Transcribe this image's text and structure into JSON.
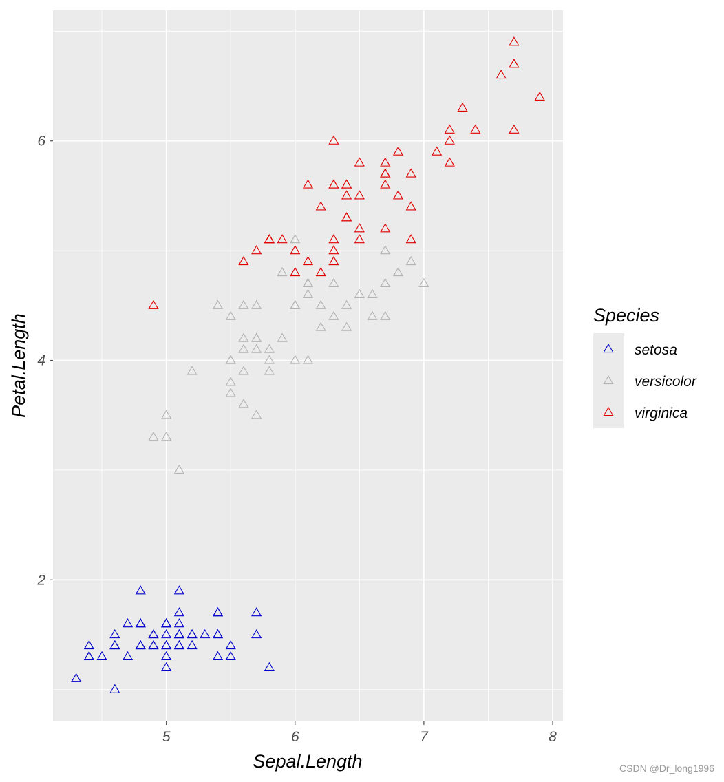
{
  "chart_data": {
    "type": "scatter",
    "title": "",
    "xlabel": "Sepal.Length",
    "ylabel": "Petal.Length",
    "xlim": [
      4.12,
      8.08
    ],
    "ylim": [
      0.71,
      7.19
    ],
    "x_ticks": [
      5,
      6,
      7,
      8
    ],
    "y_ticks": [
      2,
      4,
      6
    ],
    "x_tick_labels": [
      "5",
      "6",
      "7",
      "8"
    ],
    "y_tick_labels": [
      "2",
      "4",
      "6"
    ],
    "grid": true,
    "marker": "open-triangle",
    "legend": {
      "title": "Species",
      "placement": "right"
    },
    "series": [
      {
        "name": "setosa",
        "color": "#0000cc",
        "points": [
          [
            5.1,
            1.4
          ],
          [
            4.9,
            1.4
          ],
          [
            4.7,
            1.3
          ],
          [
            4.6,
            1.5
          ],
          [
            5.0,
            1.4
          ],
          [
            5.4,
            1.7
          ],
          [
            4.6,
            1.4
          ],
          [
            5.0,
            1.5
          ],
          [
            4.4,
            1.4
          ],
          [
            4.9,
            1.5
          ],
          [
            5.4,
            1.5
          ],
          [
            4.8,
            1.6
          ],
          [
            4.8,
            1.4
          ],
          [
            4.3,
            1.1
          ],
          [
            5.8,
            1.2
          ],
          [
            5.7,
            1.5
          ],
          [
            5.4,
            1.3
          ],
          [
            5.1,
            1.4
          ],
          [
            5.7,
            1.7
          ],
          [
            5.1,
            1.5
          ],
          [
            5.4,
            1.7
          ],
          [
            5.1,
            1.5
          ],
          [
            4.6,
            1.0
          ],
          [
            5.1,
            1.7
          ],
          [
            4.8,
            1.9
          ],
          [
            5.0,
            1.6
          ],
          [
            5.0,
            1.6
          ],
          [
            5.2,
            1.5
          ],
          [
            5.2,
            1.4
          ],
          [
            4.7,
            1.6
          ],
          [
            4.8,
            1.6
          ],
          [
            5.4,
            1.5
          ],
          [
            5.2,
            1.5
          ],
          [
            5.5,
            1.4
          ],
          [
            4.9,
            1.5
          ],
          [
            5.0,
            1.2
          ],
          [
            5.5,
            1.3
          ],
          [
            4.9,
            1.4
          ],
          [
            4.4,
            1.3
          ],
          [
            5.1,
            1.5
          ],
          [
            5.0,
            1.3
          ],
          [
            4.5,
            1.3
          ],
          [
            4.4,
            1.3
          ],
          [
            5.0,
            1.6
          ],
          [
            5.1,
            1.9
          ],
          [
            4.8,
            1.4
          ],
          [
            5.1,
            1.6
          ],
          [
            4.6,
            1.4
          ],
          [
            5.3,
            1.5
          ],
          [
            5.0,
            1.4
          ]
        ]
      },
      {
        "name": "versicolor",
        "color": "#b3b3b3",
        "points": [
          [
            7.0,
            4.7
          ],
          [
            6.4,
            4.5
          ],
          [
            6.9,
            4.9
          ],
          [
            5.5,
            4.0
          ],
          [
            6.5,
            4.6
          ],
          [
            5.7,
            4.5
          ],
          [
            6.3,
            4.7
          ],
          [
            4.9,
            3.3
          ],
          [
            6.6,
            4.6
          ],
          [
            5.2,
            3.9
          ],
          [
            5.0,
            3.5
          ],
          [
            5.9,
            4.2
          ],
          [
            6.0,
            4.0
          ],
          [
            6.1,
            4.7
          ],
          [
            5.6,
            3.6
          ],
          [
            6.7,
            4.4
          ],
          [
            5.6,
            4.5
          ],
          [
            5.8,
            4.1
          ],
          [
            6.2,
            4.5
          ],
          [
            5.6,
            3.9
          ],
          [
            5.9,
            4.8
          ],
          [
            6.1,
            4.0
          ],
          [
            6.3,
            4.9
          ],
          [
            6.1,
            4.7
          ],
          [
            6.4,
            4.3
          ],
          [
            6.6,
            4.4
          ],
          [
            6.8,
            4.8
          ],
          [
            6.7,
            5.0
          ],
          [
            6.0,
            4.5
          ],
          [
            5.7,
            3.5
          ],
          [
            5.5,
            3.8
          ],
          [
            5.5,
            3.7
          ],
          [
            5.8,
            3.9
          ],
          [
            6.0,
            5.1
          ],
          [
            5.4,
            4.5
          ],
          [
            6.0,
            4.5
          ],
          [
            6.7,
            4.7
          ],
          [
            6.3,
            4.4
          ],
          [
            5.6,
            4.1
          ],
          [
            5.5,
            4.0
          ],
          [
            5.5,
            4.4
          ],
          [
            6.1,
            4.6
          ],
          [
            5.8,
            4.0
          ],
          [
            5.0,
            3.3
          ],
          [
            5.6,
            4.2
          ],
          [
            5.7,
            4.2
          ],
          [
            5.7,
            4.2
          ],
          [
            6.2,
            4.3
          ],
          [
            5.1,
            3.0
          ],
          [
            5.7,
            4.1
          ]
        ]
      },
      {
        "name": "virginica",
        "color": "#e00000",
        "points": [
          [
            6.3,
            6.0
          ],
          [
            5.8,
            5.1
          ],
          [
            7.1,
            5.9
          ],
          [
            6.3,
            5.6
          ],
          [
            6.5,
            5.8
          ],
          [
            7.6,
            6.6
          ],
          [
            4.9,
            4.5
          ],
          [
            7.3,
            6.3
          ],
          [
            6.7,
            5.8
          ],
          [
            7.2,
            6.1
          ],
          [
            6.5,
            5.1
          ],
          [
            6.4,
            5.3
          ],
          [
            6.8,
            5.5
          ],
          [
            5.7,
            5.0
          ],
          [
            5.8,
            5.1
          ],
          [
            6.4,
            5.3
          ],
          [
            6.5,
            5.5
          ],
          [
            7.7,
            6.7
          ],
          [
            7.7,
            6.9
          ],
          [
            6.0,
            5.0
          ],
          [
            6.9,
            5.7
          ],
          [
            5.6,
            4.9
          ],
          [
            7.7,
            6.7
          ],
          [
            6.3,
            4.9
          ],
          [
            6.7,
            5.7
          ],
          [
            7.2,
            6.0
          ],
          [
            6.2,
            4.8
          ],
          [
            6.1,
            4.9
          ],
          [
            6.4,
            5.6
          ],
          [
            7.2,
            5.8
          ],
          [
            7.4,
            6.1
          ],
          [
            7.9,
            6.4
          ],
          [
            6.4,
            5.6
          ],
          [
            6.3,
            5.1
          ],
          [
            6.1,
            5.6
          ],
          [
            7.7,
            6.1
          ],
          [
            6.3,
            5.6
          ],
          [
            6.4,
            5.5
          ],
          [
            6.0,
            4.8
          ],
          [
            6.9,
            5.4
          ],
          [
            6.7,
            5.6
          ],
          [
            6.9,
            5.1
          ],
          [
            5.8,
            5.1
          ],
          [
            6.8,
            5.9
          ],
          [
            6.7,
            5.7
          ],
          [
            6.7,
            5.2
          ],
          [
            6.3,
            5.0
          ],
          [
            6.5,
            5.2
          ],
          [
            6.2,
            5.4
          ],
          [
            5.9,
            5.1
          ]
        ]
      }
    ]
  },
  "watermark": "CSDN @Dr_long1996",
  "colors": {
    "panel_bg": "#ebebeb",
    "grid_major": "#ffffff",
    "tick": "#4d4d4d"
  }
}
